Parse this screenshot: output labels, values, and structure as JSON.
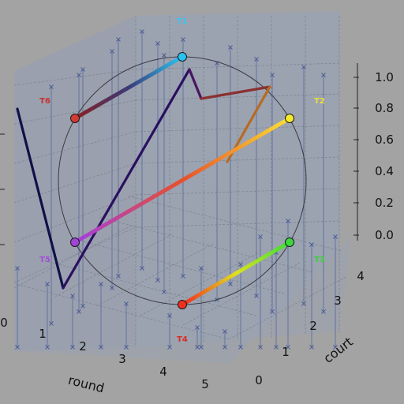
{
  "chart_data": {
    "type": "scatter",
    "title": "",
    "axes": {
      "x": {
        "label": "round",
        "ticks": [
          "0",
          "1",
          "2",
          "3",
          "4",
          "5"
        ],
        "range": [
          0,
          5
        ]
      },
      "y": {
        "label": "court",
        "ticks": [
          "0",
          "1",
          "2",
          "3",
          "4"
        ],
        "range": [
          0,
          4
        ]
      },
      "z": {
        "label": "",
        "ticks": [
          "0.0",
          "0.2",
          "0.4",
          "0.6",
          "0.8",
          "1.0"
        ],
        "range": [
          0,
          1
        ]
      }
    },
    "grid": true,
    "teams": [
      {
        "name": "T1",
        "color": "#29c4f0",
        "label_color": "#3cc4ee"
      },
      {
        "name": "T2",
        "color": "#f6ea2e",
        "label_color": "#ecdf3a"
      },
      {
        "name": "T3",
        "color": "#3dd83d",
        "label_color": "#3ad03a"
      },
      {
        "name": "T4",
        "color": "#f0301e",
        "label_color": "#e02a1e"
      },
      {
        "name": "T5",
        "color": "#a144d8",
        "label_color": "#a44ad8"
      },
      {
        "name": "T6",
        "color": "#d43a34",
        "label_color": "#c83030"
      }
    ],
    "ribbons": [
      {
        "from": "T4",
        "to": "T3",
        "colors": [
          "#f02a1e",
          "#e0e020",
          "#36e036"
        ]
      },
      {
        "from": "T5",
        "to": "T2",
        "colors": [
          "#a43ee0",
          "#e8502a",
          "#fbe132"
        ]
      },
      {
        "from": "T6",
        "to": "T1",
        "colors": [
          "#8a2020",
          "#3a3a7a",
          "#29c4f0"
        ]
      }
    ],
    "path": [
      "#101048",
      "#2a1060",
      "#4a1660",
      "#8a3030",
      "#b86a20"
    ],
    "markers": "x",
    "stems": true
  }
}
